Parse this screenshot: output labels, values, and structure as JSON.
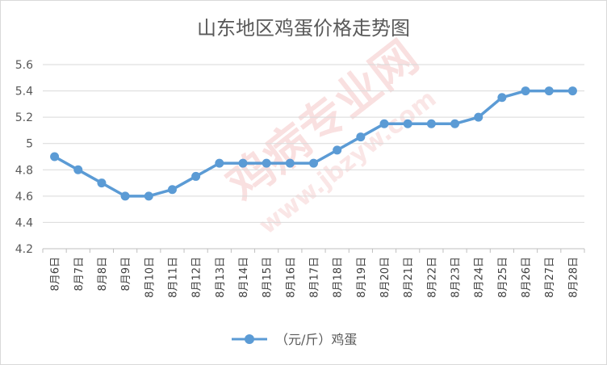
{
  "chart_data": {
    "type": "line",
    "title": "山东地区鸡蛋价格走势图",
    "categories": [
      "8月6日",
      "8月7日",
      "8月8日",
      "8月9日",
      "8月10日",
      "8月11日",
      "8月12日",
      "8月13日",
      "8月14日",
      "8月15日",
      "8月16日",
      "8月17日",
      "8月18日",
      "8月19日",
      "8月20日",
      "8月21日",
      "8月22日",
      "8月23日",
      "8月24日",
      "8月25日",
      "8月26日",
      "8月27日",
      "8月28日"
    ],
    "series": [
      {
        "name": "（元/斤）鸡蛋",
        "color": "#5b9bd5",
        "values": [
          4.9,
          4.8,
          4.7,
          4.6,
          4.6,
          4.65,
          4.75,
          4.85,
          4.85,
          4.85,
          4.85,
          4.85,
          4.95,
          5.05,
          5.15,
          5.15,
          5.15,
          5.15,
          5.2,
          5.35,
          5.4,
          5.4,
          5.4
        ]
      }
    ],
    "ylim": [
      4.2,
      5.6
    ],
    "yticks": [
      "4.2",
      "4.4",
      "4.6",
      "4.8",
      "5",
      "5.2",
      "5.4",
      "5.6"
    ],
    "grid": true,
    "legend_position": "bottom",
    "xlabel": "",
    "ylabel": ""
  },
  "watermark": {
    "text_main": "鸡病专业网",
    "text_url": "www.jbzyw.com",
    "color": "#e57373"
  }
}
